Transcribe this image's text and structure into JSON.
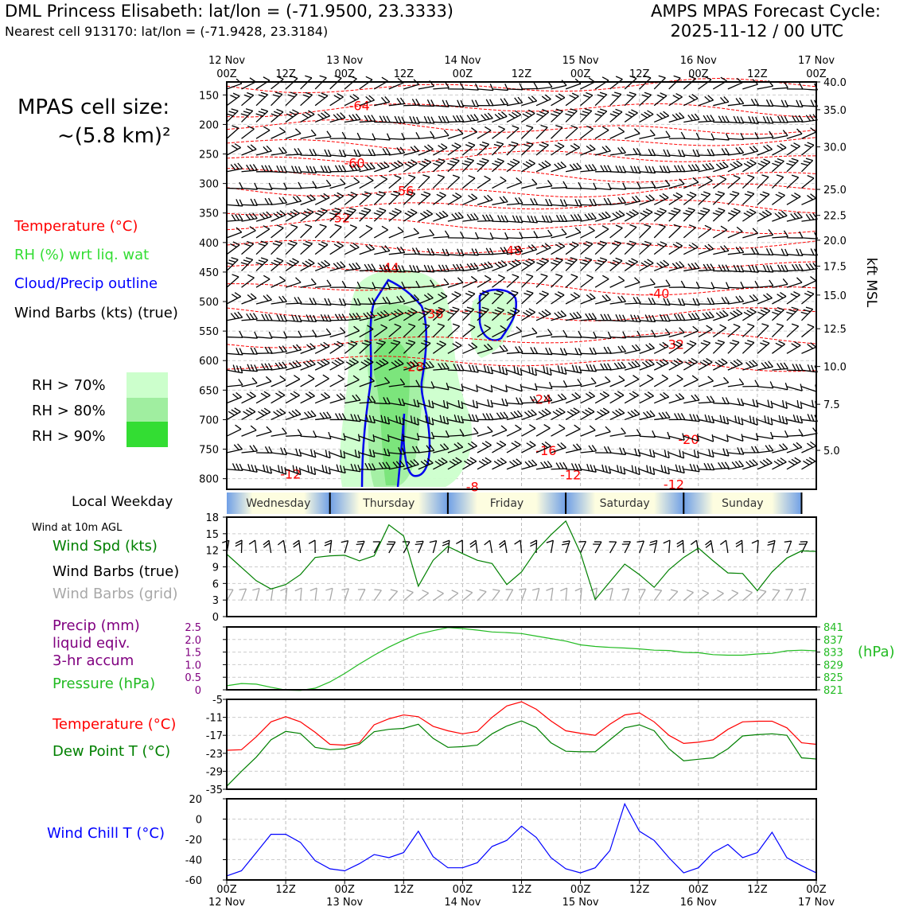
{
  "header": {
    "title": "DML Princess Elisabeth: lat/lon = (-71.9500, 23.3333)",
    "subtitle": "Nearest cell 913170: lat/lon = (-71.9428, 23.3184)",
    "cycle_line1": "AMPS MPAS Forecast Cycle:",
    "cycle_line2": "2025-11-12 / 00 UTC"
  },
  "cell_size": {
    "line1": "MPAS cell size:",
    "line2": "~(5.8 km)²"
  },
  "legend_upper": {
    "temperature": "Temperature (°C)",
    "rh": "RH (%) wrt liq. wat",
    "cloud": "Cloud/Precip outline",
    "barbs": "Wind Barbs (kts) (true)",
    "colors": {
      "temperature": "#ff0000",
      "rh": "#33dd33",
      "cloud": "#0000ff",
      "barbs": "#000000"
    }
  },
  "rh_legend": [
    {
      "label": "RH > 70%",
      "color": "#ccffcc"
    },
    {
      "label": "RH > 80%",
      "color": "#a0eea0"
    },
    {
      "label": "RH > 90%",
      "color": "#33dd33"
    }
  ],
  "weekday_label": "Local Weekday",
  "wind10m_label": "Wind at 10m AGL",
  "legend_wind": {
    "speed": "Wind Spd (kts)",
    "barbs_true": "Wind Barbs (true)",
    "barbs_grid": "Wind Barbs (grid)"
  },
  "legend_precip": {
    "line1": "Precip (mm)",
    "line2": "liquid eqiv.",
    "line3": "3-hr accum",
    "pressure": "Pressure (hPa)",
    "hpa_unit": "(hPa)"
  },
  "legend_temp": {
    "temp": "Temperature (°C)",
    "dew": "Dew Point T (°C)"
  },
  "legend_chill": "Wind Chill T (°C)",
  "time_axis": {
    "top_dates": [
      "12 Nov",
      "",
      "13 Nov",
      "",
      "14 Nov",
      "",
      "15 Nov",
      "",
      "16 Nov",
      "",
      "17 Nov"
    ],
    "hours": [
      "00Z",
      "12Z",
      "00Z",
      "12Z",
      "00Z",
      "12Z",
      "00Z",
      "12Z",
      "00Z",
      "12Z",
      "00Z"
    ],
    "bottom_dates": [
      "12 Nov",
      "",
      "13 Nov",
      "",
      "14 Nov",
      "",
      "15 Nov",
      "",
      "16 Nov",
      "",
      "17 Nov"
    ]
  },
  "weekdays": [
    "Wednesday",
    "Thursday",
    "Friday",
    "Saturday",
    "Sunday"
  ],
  "chart_data": [
    {
      "type": "heatmap",
      "panel": "sounding",
      "ylabel_right": "kft MSL",
      "pressure_ticks": [
        150,
        200,
        250,
        300,
        350,
        400,
        450,
        500,
        550,
        600,
        650,
        700,
        750,
        800
      ],
      "kft_ticks": [
        {
          "p": 128,
          "label": "40.0"
        },
        {
          "p": 175,
          "label": "35.0"
        },
        {
          "p": 238,
          "label": "30.0"
        },
        {
          "p": 310,
          "label": "25.0"
        },
        {
          "p": 354,
          "label": "22.5"
        },
        {
          "p": 396,
          "label": "20.0"
        },
        {
          "p": 440,
          "label": "17.5"
        },
        {
          "p": 489,
          "label": "15.0"
        },
        {
          "p": 546,
          "label": "12.5"
        },
        {
          "p": 610,
          "label": "10.0"
        },
        {
          "p": 674,
          "label": "7.5"
        },
        {
          "p": 752,
          "label": "5.0"
        }
      ],
      "ylim_hpa": [
        128,
        818
      ],
      "temperature_contour_labels": [
        {
          "t": 27,
          "p": 168,
          "label": "-64"
        },
        {
          "t": 26,
          "p": 265,
          "label": "-60"
        },
        {
          "t": 36,
          "p": 312,
          "label": "-56"
        },
        {
          "t": 23,
          "p": 358,
          "label": "-52"
        },
        {
          "t": 58,
          "p": 413,
          "label": "-48"
        },
        {
          "t": 33,
          "p": 442,
          "label": "-44"
        },
        {
          "t": 88,
          "p": 486,
          "label": "-40"
        },
        {
          "t": 42,
          "p": 520,
          "label": "-36"
        },
        {
          "t": 91,
          "p": 572,
          "label": "-32"
        },
        {
          "t": 38,
          "p": 610,
          "label": "-28"
        },
        {
          "t": 64,
          "p": 665,
          "label": "-24"
        },
        {
          "t": 94,
          "p": 733,
          "label": "-20"
        },
        {
          "t": 65,
          "p": 752,
          "label": "-16"
        },
        {
          "t": 13,
          "p": 792,
          "label": "-12"
        },
        {
          "t": 70,
          "p": 793,
          "label": "-12"
        },
        {
          "t": 91,
          "p": 809,
          "label": "-12"
        },
        {
          "t": 50,
          "p": 813,
          "label": "-8"
        }
      ]
    },
    {
      "type": "line",
      "panel": "wind_10m",
      "ylim": [
        0,
        18
      ],
      "yticks": [
        0,
        3,
        6,
        9,
        12,
        15,
        18
      ],
      "x_hours": [
        0,
        6,
        9,
        12,
        15,
        18,
        21,
        24,
        27,
        30,
        33,
        36,
        39,
        42,
        45,
        48,
        51,
        54,
        57,
        60,
        63,
        66,
        69,
        72,
        75,
        78,
        81,
        84,
        87,
        90,
        93,
        96,
        99,
        102,
        105,
        108,
        111,
        114,
        117,
        120
      ],
      "series": [
        {
          "values": [
            11.3,
            6.5,
            5.0,
            5.8,
            7.6,
            10.7,
            11.0,
            11.1,
            10.1,
            11.0,
            16.6,
            14.6,
            5.5,
            10.2,
            12.7,
            11.4,
            10.2,
            9.6,
            5.8,
            8.1,
            12.0,
            14.8,
            17.3,
            11.5,
            3.1,
            6.3,
            9.5,
            7.6,
            5.3,
            8.5,
            10.7,
            12.4,
            10.1,
            7.9,
            7.8,
            4.7,
            8.1,
            10.6,
            11.9,
            11.8
          ]
        }
      ]
    },
    {
      "type": "line",
      "panel": "precip_pressure",
      "ylim": [
        0,
        2.5
      ],
      "yticks": [
        "2.5",
        "2.0",
        "1.5",
        "1.0",
        "0.5",
        "0"
      ],
      "pressure_ticks": [
        "841",
        "837",
        "833",
        "829",
        "825",
        "821"
      ],
      "pressure_lim": [
        821,
        841
      ],
      "x_hours": [
        0,
        3,
        6,
        9,
        12,
        15,
        18,
        21,
        24,
        27,
        30,
        33,
        36,
        39,
        42,
        45,
        48,
        51,
        54,
        57,
        60,
        63,
        66,
        69,
        72,
        75,
        78,
        81,
        84,
        87,
        90,
        93,
        96,
        99,
        102,
        105,
        108,
        111,
        114,
        117,
        120
      ],
      "series": [
        {
          "name": "Pressure",
          "unit": "hPa",
          "values": [
            822.3,
            823.0,
            822.8,
            821.8,
            820.9,
            820.8,
            821.5,
            823.5,
            826.2,
            829.2,
            832.0,
            834.6,
            836.8,
            838.7,
            839.8,
            840.8,
            840.5,
            840.0,
            839.4,
            839.2,
            838.9,
            838.1,
            837.3,
            836.5,
            835.3,
            834.8,
            834.5,
            834.3,
            834.0,
            833.6,
            833.5,
            832.9,
            832.8,
            832.2,
            832.0,
            832.0,
            832.4,
            832.6,
            833.4,
            833.6,
            833.4
          ]
        }
      ]
    },
    {
      "type": "line",
      "panel": "temperature",
      "ylim": [
        -35,
        -5
      ],
      "yticks": [
        -5,
        -11,
        -17,
        -23,
        -29,
        -35
      ],
      "x_hours": [
        0,
        3,
        6,
        9,
        12,
        15,
        18,
        21,
        24,
        27,
        30,
        33,
        36,
        39,
        42,
        45,
        48,
        51,
        54,
        57,
        60,
        63,
        66,
        69,
        72,
        75,
        78,
        81,
        84,
        87,
        90,
        93,
        96,
        99,
        102,
        105,
        108,
        111,
        114,
        117,
        120
      ],
      "series": [
        {
          "name": "Temperature",
          "color": "#ff0000",
          "values": [
            -22,
            -21.8,
            -17.5,
            -12.5,
            -10.8,
            -12.5,
            -16,
            -20,
            -20.3,
            -19.5,
            -13.5,
            -11.5,
            -10.2,
            -10.8,
            -14,
            -15.5,
            -16.5,
            -15.7,
            -11,
            -7.2,
            -5.8,
            -8.3,
            -12.2,
            -15.5,
            -16.3,
            -17,
            -13.3,
            -10.2,
            -9.5,
            -12.5,
            -17,
            -19.7,
            -19.3,
            -18.5,
            -15,
            -12.5,
            -12.3,
            -12.3,
            -14.5,
            -19.5,
            -20
          ]
        },
        {
          "name": "Dew Point T",
          "color": "#008000",
          "values": [
            -34,
            -29,
            -24.3,
            -18.5,
            -15.7,
            -16.4,
            -21,
            -21.8,
            -21.5,
            -20,
            -15.8,
            -15,
            -14.7,
            -13.3,
            -18,
            -21,
            -20.8,
            -20.3,
            -16.5,
            -13.9,
            -12.2,
            -14.4,
            -19.5,
            -22.3,
            -22.5,
            -22.5,
            -18.5,
            -14.5,
            -13.5,
            -15.5,
            -21.5,
            -25.5,
            -25,
            -24.5,
            -21.5,
            -17.2,
            -16.8,
            -16.5,
            -17,
            -24.5,
            -24.9
          ]
        }
      ]
    },
    {
      "type": "line",
      "panel": "wind_chill",
      "ylim": [
        -60,
        20
      ],
      "yticks": [
        20,
        0,
        -20,
        -40,
        -60
      ],
      "x_hours": [
        0,
        3,
        6,
        9,
        12,
        15,
        18,
        21,
        24,
        27,
        30,
        33,
        36,
        39,
        42,
        45,
        48,
        51,
        54,
        57,
        60,
        63,
        66,
        69,
        72,
        75,
        78,
        81,
        84,
        87,
        90,
        93,
        96,
        99,
        102,
        105,
        108,
        111,
        114,
        117,
        120
      ],
      "series": [
        {
          "name": "Wind Chill T",
          "color": "#0000ff",
          "values": [
            -56,
            -51,
            -33,
            -15,
            -15,
            -23,
            -41,
            -49,
            -51,
            -44,
            -35,
            -38,
            -33,
            -12,
            -37,
            -48,
            -48,
            -43,
            -27,
            -21,
            -7,
            -18,
            -38,
            -49,
            -53,
            -48,
            -31,
            15,
            -12,
            -21,
            -38,
            -53,
            -48,
            -33,
            -25,
            -38,
            -33,
            -13,
            -38,
            -46,
            -53
          ]
        }
      ]
    }
  ]
}
